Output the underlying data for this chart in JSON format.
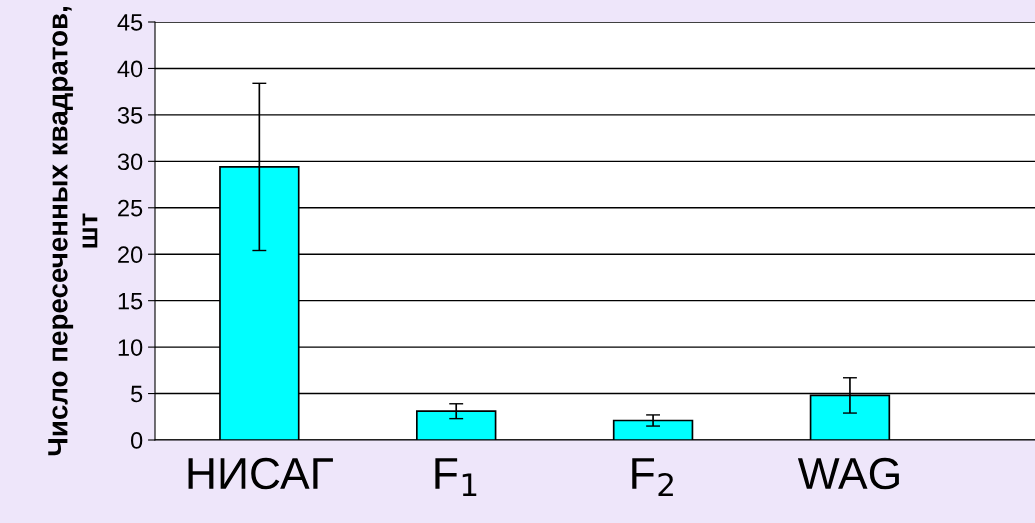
{
  "chart_data": {
    "type": "bar",
    "ylabel": "Число пересеченных квадратов, шт",
    "categories": [
      "НИСАГ",
      "F$_{1}$",
      "F$_{2}$",
      "WAG"
    ],
    "values": [
      29.4,
      3.1,
      2.1,
      4.8
    ],
    "errors": [
      9.0,
      0.8,
      0.6,
      1.9
    ],
    "color": "#00ffff",
    "ylim": [
      0,
      45
    ],
    "yticks": [
      0,
      5,
      10,
      15,
      20,
      25,
      30,
      35,
      40,
      45
    ],
    "grid": "y"
  }
}
